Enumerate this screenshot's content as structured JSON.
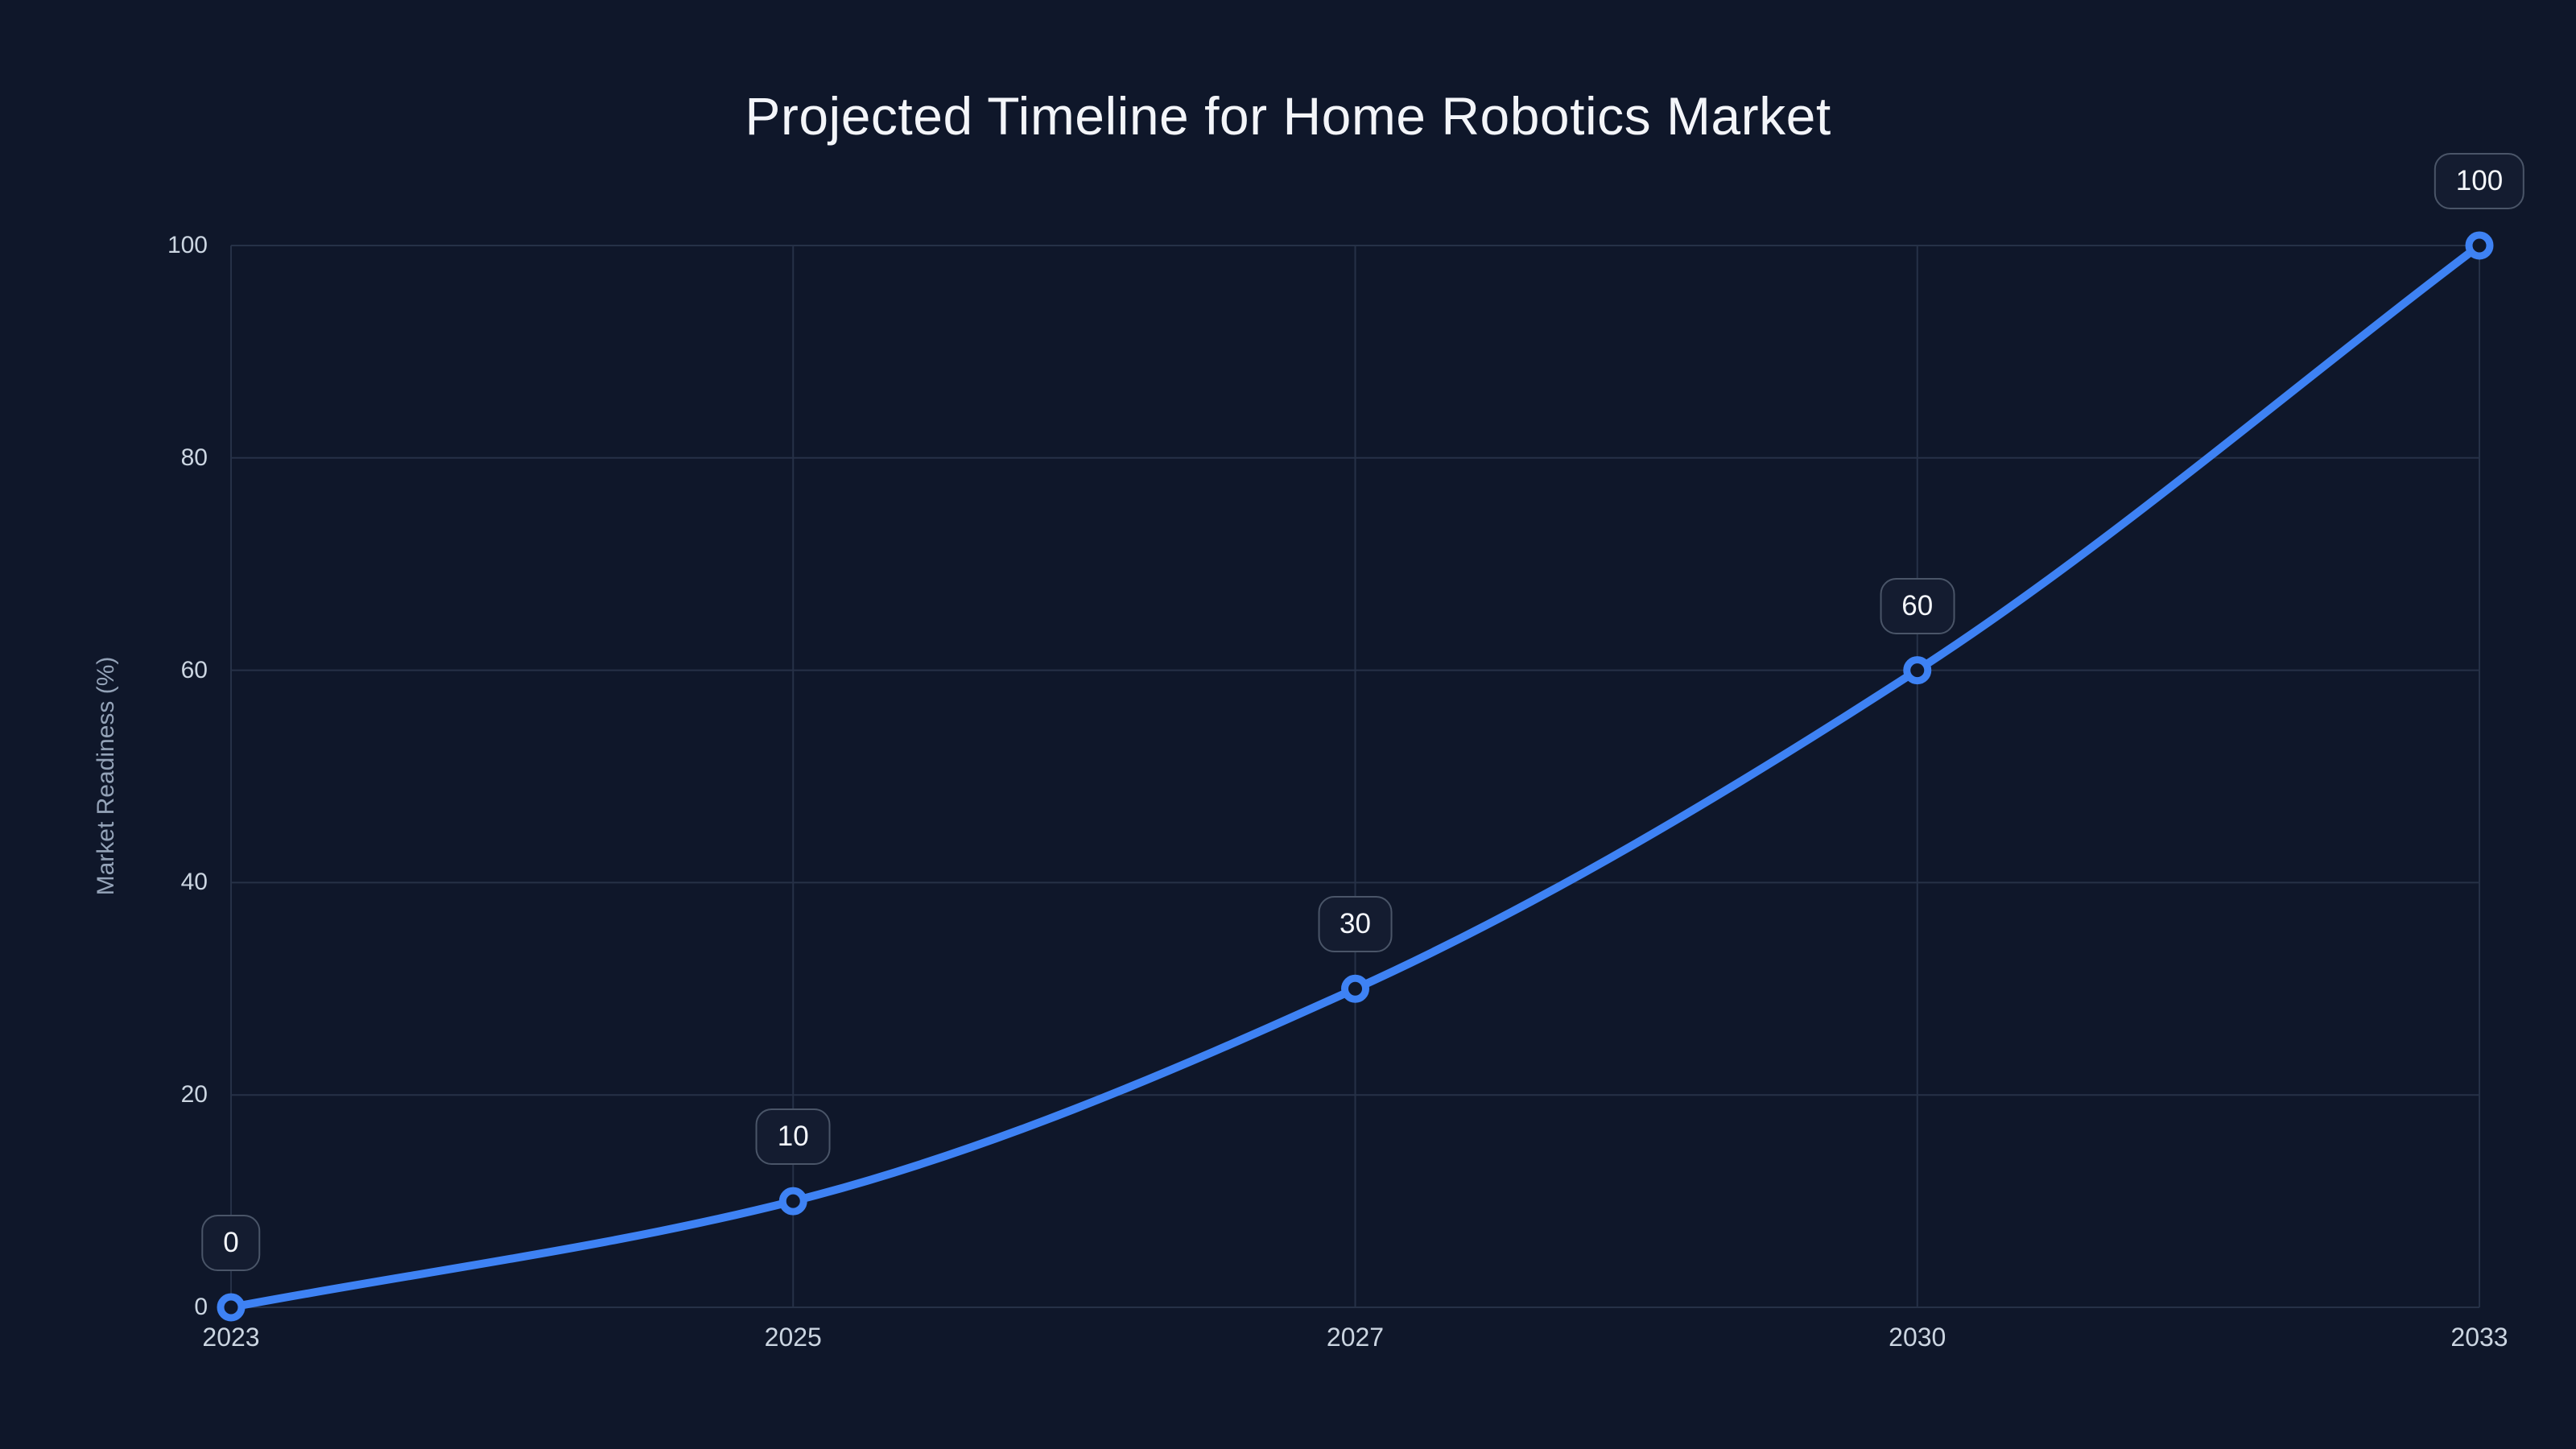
{
  "colors": {
    "background": "#0f172a",
    "accent": "#3e82f4",
    "grid": "#263147",
    "tick_text": "#cbd5e1",
    "axis_title_text": "#94a3b8",
    "point_label_text": "#f4f6fb",
    "point_label_bg": "#141c30",
    "point_label_border": "#4a5568",
    "title_text": "#f3f5f9"
  },
  "chart_data": {
    "type": "line",
    "title": "Projected Timeline for Home Robotics Market",
    "categories": [
      "2023",
      "2025",
      "2027",
      "2030",
      "2033"
    ],
    "values": [
      0,
      10,
      30,
      60,
      100
    ],
    "point_labels": [
      "0",
      "10",
      "30",
      "60",
      "100"
    ],
    "series_name": "Market Readiness",
    "xlabel": "",
    "ylabel": "Market Readiness (%)",
    "ylim": [
      0,
      100
    ],
    "yticks": [
      0,
      20,
      40,
      60,
      80,
      100
    ],
    "grid": true,
    "legend": false,
    "line_style": "smooth",
    "marker": "open-circle",
    "x_spacing": "equal"
  }
}
